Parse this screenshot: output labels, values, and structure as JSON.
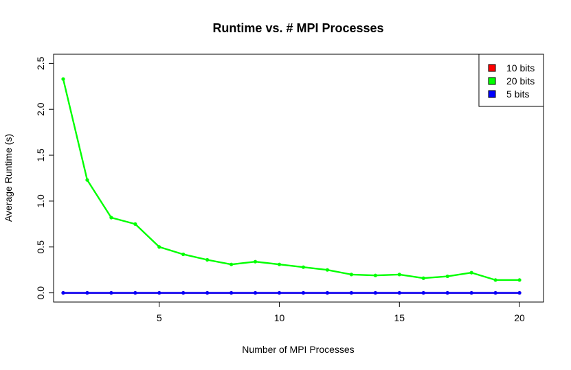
{
  "chart_data": {
    "type": "line",
    "title": "Runtime vs. # MPI Processes",
    "xlabel": "Number of MPI Processes",
    "ylabel": "Average Runtime (s)",
    "xlim": [
      0.6,
      21.0
    ],
    "ylim": [
      -0.1,
      2.6
    ],
    "x_ticks": [
      5,
      10,
      15,
      20
    ],
    "x_tick_labels": [
      "5",
      "10",
      "15",
      "20"
    ],
    "y_ticks": [
      0,
      0.5,
      1,
      1.5,
      2,
      2.5
    ],
    "y_tick_labels": [
      "0.0",
      "0.5",
      "1.0",
      "1.5",
      "2.0",
      "2.5"
    ],
    "legend_position": "top-right",
    "grid": false,
    "x": [
      1,
      2,
      3,
      4,
      5,
      6,
      7,
      8,
      9,
      10,
      11,
      12,
      13,
      14,
      15,
      16,
      17,
      18,
      19,
      20
    ],
    "series": [
      {
        "name": "10 bits",
        "color": "#ff0000",
        "values": [
          0.0,
          0.0,
          0.0,
          0.0,
          0.0,
          0.0,
          0.0,
          0.0,
          0.0,
          0.0,
          0.0,
          0.0,
          0.0,
          0.0,
          0.0,
          0.0,
          0.0,
          0.0,
          0.0,
          0.0
        ]
      },
      {
        "name": "20 bits",
        "color": "#00ff00",
        "values": [
          2.33,
          1.23,
          0.82,
          0.75,
          0.5,
          0.42,
          0.36,
          0.31,
          0.34,
          0.31,
          0.28,
          0.25,
          0.2,
          0.19,
          0.2,
          0.16,
          0.18,
          0.22,
          0.14,
          0.14
        ]
      },
      {
        "name": "5 bits",
        "color": "#0000ff",
        "values": [
          0.0,
          0.0,
          0.0,
          0.0,
          0.0,
          0.0,
          0.0,
          0.0,
          0.0,
          0.0,
          0.0,
          0.0,
          0.0,
          0.0,
          0.0,
          0.0,
          0.0,
          0.0,
          0.0,
          0.0
        ]
      }
    ]
  }
}
